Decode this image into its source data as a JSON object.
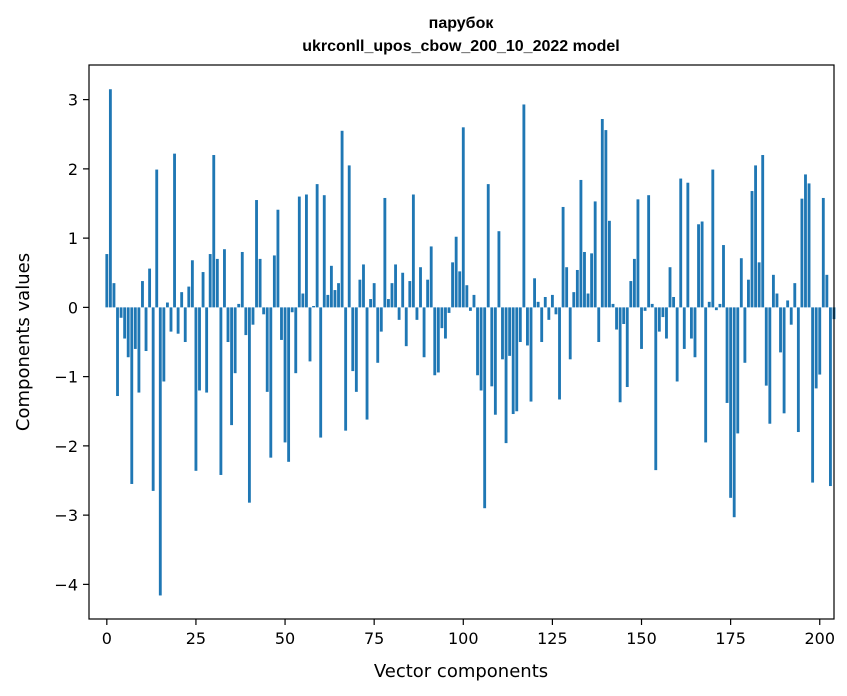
{
  "chart_data": {
    "type": "bar",
    "title": "парубок",
    "subtitle": "ukrconll_upos_cbow_200_10_2022 model",
    "xlabel": "Vector components",
    "ylabel": "Components values",
    "xlim": [
      -5,
      204
    ],
    "ylim": [
      -4.5,
      3.5
    ],
    "xticks": [
      0,
      25,
      50,
      75,
      100,
      125,
      150,
      175,
      200
    ],
    "yticks": [
      -4,
      -3,
      -2,
      -1,
      0,
      1,
      2,
      3
    ],
    "xtick_labels": [
      "0",
      "25",
      "50",
      "75",
      "100",
      "125",
      "150",
      "175",
      "200"
    ],
    "ytick_labels": [
      "−4",
      "−3",
      "−2",
      "−1",
      "0",
      "1",
      "2",
      "3"
    ],
    "grid": false,
    "bar_color": "#1f77b4",
    "x_start": 0,
    "values": [
      0.77,
      3.15,
      0.35,
      -1.28,
      -0.15,
      -0.45,
      -0.72,
      -2.55,
      -0.6,
      -1.23,
      0.38,
      -0.63,
      0.56,
      -2.65,
      1.99,
      -4.16,
      -1.07,
      0.07,
      -0.35,
      2.22,
      -0.38,
      0.22,
      -0.5,
      0.3,
      0.68,
      -2.36,
      -1.2,
      0.51,
      -1.23,
      0.77,
      2.2,
      0.7,
      -2.42,
      0.84,
      -0.5,
      -1.7,
      -0.95,
      0.05,
      0.8,
      -0.4,
      -2.82,
      -0.25,
      1.55,
      0.7,
      -0.1,
      -1.22,
      -2.17,
      0.75,
      1.41,
      -0.47,
      -1.95,
      -2.23,
      -0.07,
      -0.95,
      1.6,
      0.2,
      1.63,
      -0.78,
      0.02,
      1.78,
      -1.88,
      1.62,
      0.18,
      0.6,
      0.25,
      0.35,
      2.55,
      -1.78,
      2.05,
      -0.92,
      -1.22,
      0.4,
      0.62,
      -1.62,
      0.12,
      0.35,
      -0.8,
      -0.35,
      1.58,
      0.12,
      0.35,
      0.62,
      -0.18,
      0.5,
      -0.56,
      0.38,
      1.63,
      -0.18,
      0.58,
      -0.72,
      0.4,
      0.88,
      -0.98,
      -0.94,
      -0.3,
      -0.45,
      -0.08,
      0.65,
      1.02,
      0.52,
      2.6,
      0.32,
      -0.05,
      0.18,
      -0.98,
      -1.2,
      -2.9,
      1.78,
      -1.14,
      -1.55,
      1.1,
      -0.75,
      -1.96,
      -0.7,
      -1.54,
      -1.5,
      -0.5,
      2.93,
      -0.55,
      -1.36,
      0.42,
      0.08,
      -0.5,
      0.15,
      -0.18,
      0.18,
      -0.1,
      -1.33,
      1.45,
      0.58,
      -0.75,
      0.22,
      0.54,
      1.84,
      0.8,
      0.2,
      0.78,
      1.53,
      -0.5,
      2.72,
      2.56,
      1.25,
      0.05,
      -0.32,
      -1.37,
      -0.24,
      -1.15,
      0.38,
      0.7,
      1.56,
      -0.6,
      -0.05,
      1.62,
      0.05,
      -2.35,
      -0.35,
      -0.14,
      -0.45,
      0.58,
      0.15,
      -1.07,
      1.86,
      -0.6,
      1.8,
      -0.45,
      -0.72,
      1.2,
      1.24,
      -1.95,
      0.08,
      1.99,
      -0.04,
      0.05,
      0.9,
      -1.38,
      -2.75,
      -3.03,
      -1.82,
      0.71,
      -0.8,
      0.4,
      1.68,
      2.05,
      0.65,
      2.2,
      -1.13,
      -1.68,
      0.47,
      0.2,
      -0.65,
      -1.53,
      0.1,
      -0.25,
      0.35,
      -1.8,
      1.57,
      1.92,
      1.79,
      -2.53,
      -1.17,
      -0.97,
      1.58,
      0.47,
      -2.58,
      -0.17
    ]
  }
}
